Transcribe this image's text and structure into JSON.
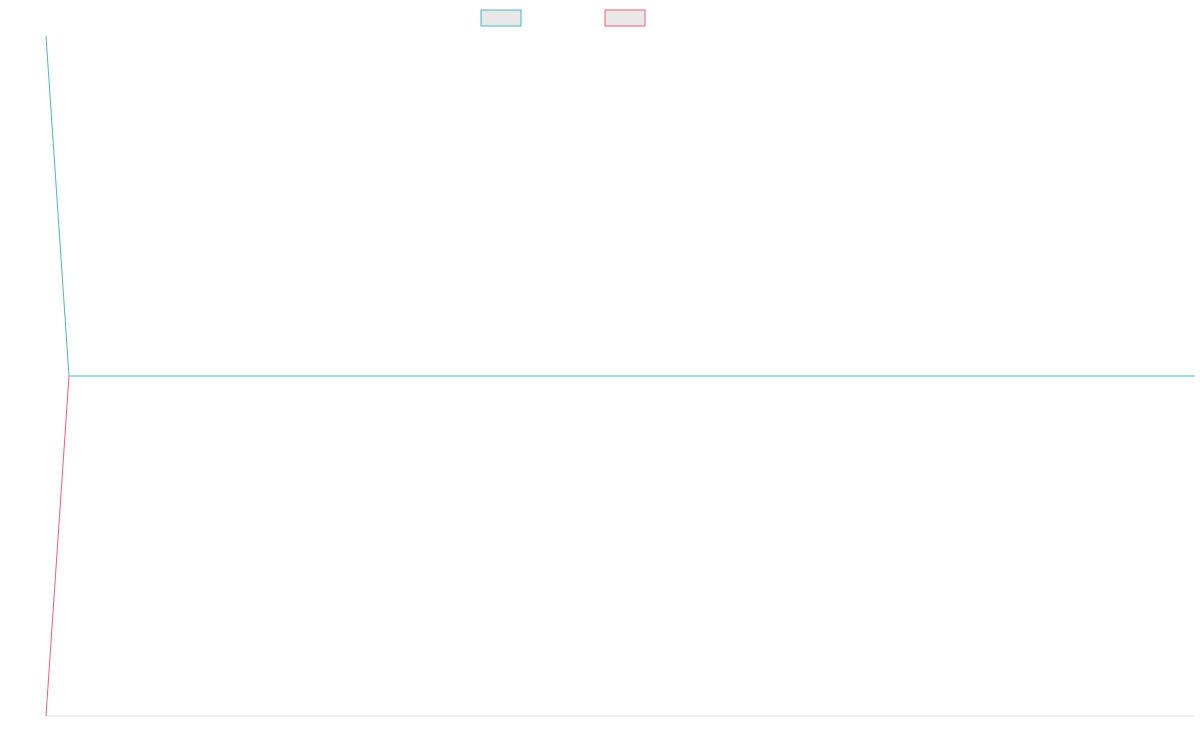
{
  "chart_data": {
    "type": "line",
    "title": "",
    "xlabel": "",
    "ylabel": "",
    "legend_position": "top-center",
    "grid": false,
    "x": [
      0,
      1,
      2,
      3,
      4,
      5,
      6,
      7,
      8,
      9,
      10,
      11,
      12,
      13,
      14,
      15,
      16,
      17,
      18,
      19,
      20,
      21,
      22,
      23,
      24,
      25,
      26,
      27,
      28,
      29,
      30,
      31,
      32,
      33,
      34,
      35,
      36,
      37,
      38,
      39,
      40,
      41,
      42,
      43,
      44,
      45,
      46,
      47,
      48,
      49,
      50
    ],
    "xlim": [
      0,
      50
    ],
    "ylim": [
      -1,
      1
    ],
    "series": [
      {
        "name": "",
        "color": "#4bb8c4",
        "values": [
          1.0,
          0.0,
          0.0,
          0.0,
          0.0,
          0.0,
          0.0,
          0.0,
          0.0,
          0.0,
          0.0,
          0.0,
          0.0,
          0.0,
          0.0,
          0.0,
          0.0,
          0.0,
          0.0,
          0.0,
          0.0,
          0.0,
          0.0,
          0.0,
          0.0,
          0.0,
          0.0,
          0.0,
          0.0,
          0.0,
          0.0,
          0.0,
          0.0,
          0.0,
          0.0,
          0.0,
          0.0,
          0.0,
          0.0,
          0.0,
          0.0,
          0.0,
          0.0,
          0.0,
          0.0,
          0.0,
          0.0,
          0.0,
          0.0,
          0.0,
          0.0
        ]
      },
      {
        "name": "",
        "color": "#f0607a",
        "values": [
          -1.0,
          0.0,
          0.0,
          0.0,
          0.0,
          0.0,
          0.0,
          0.0,
          0.0,
          0.0,
          0.0,
          0.0,
          0.0,
          0.0,
          0.0,
          0.0,
          0.0,
          0.0,
          0.0,
          0.0,
          0.0,
          0.0,
          0.0,
          0.0,
          0.0,
          0.0,
          0.0,
          0.0,
          0.0,
          0.0,
          0.0,
          0.0,
          0.0,
          0.0,
          0.0,
          0.0,
          0.0,
          0.0,
          0.0,
          0.0,
          0.0,
          0.0,
          0.0,
          0.0,
          0.0,
          0.0,
          0.0,
          0.0,
          0.0,
          0.0,
          0.0
        ]
      }
    ]
  }
}
